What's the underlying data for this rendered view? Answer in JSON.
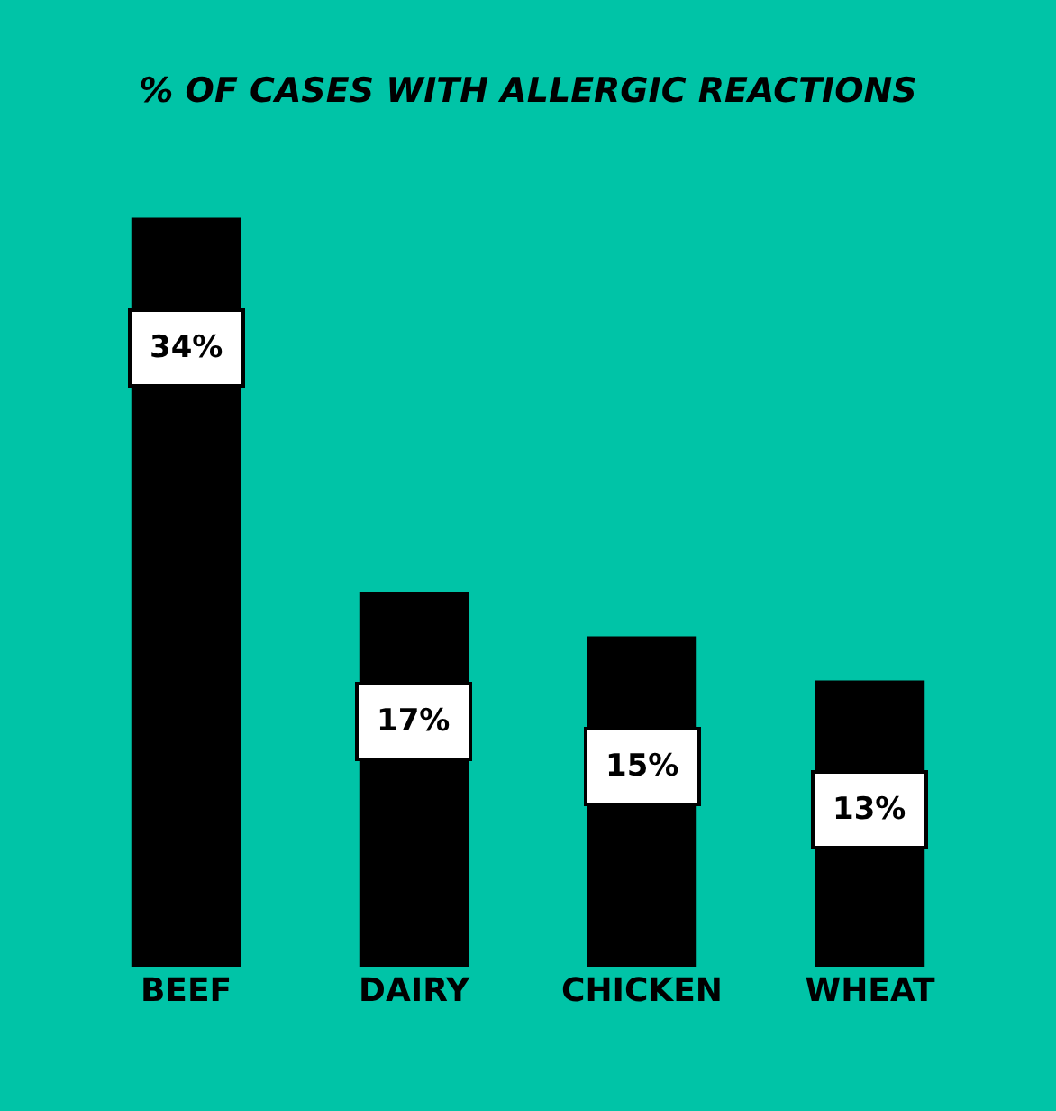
{
  "chart_data": {
    "type": "bar",
    "title": "% OF CASES WITH ALLERGIC REACTIONS",
    "categories": [
      "BEEF",
      "DAIRY",
      "CHICKEN",
      "WHEAT"
    ],
    "values": [
      34,
      17,
      15,
      13
    ],
    "value_labels": [
      "34%",
      "17%",
      "15%",
      "13%"
    ],
    "color": "#000000",
    "grid": false,
    "legend": false
  }
}
